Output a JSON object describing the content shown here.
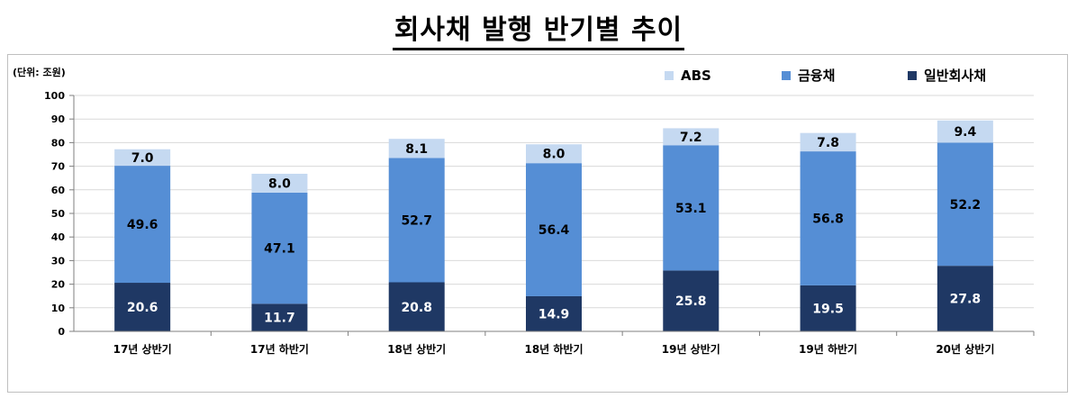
{
  "title": "회사채 발행 반기별 추이",
  "unit_label": "(단위: 조원)",
  "colors": {
    "abs": "#c5d9f1",
    "finance": "#558ed5",
    "general": "#1f3864",
    "grid": "#d9d9d9"
  },
  "chart_data": {
    "type": "bar",
    "stacked": true,
    "title": "",
    "xlabel": "",
    "ylabel": "",
    "ylim": [
      0,
      100
    ],
    "yticks": [
      "0",
      "10",
      "20",
      "30",
      "40",
      "50",
      "60",
      "70",
      "80",
      "90",
      "100"
    ],
    "categories": [
      "17년 상반기",
      "17년 하반기",
      "18년 상반기",
      "18년 하반기",
      "19년 상반기",
      "19년 하반기",
      "20년 상반기"
    ],
    "series": [
      {
        "name": "일반회사채",
        "values": [
          20.6,
          11.7,
          20.8,
          14.9,
          25.8,
          19.5,
          27.8
        ]
      },
      {
        "name": "금융채",
        "values": [
          49.6,
          47.1,
          52.7,
          56.4,
          53.1,
          56.8,
          52.2
        ]
      },
      {
        "name": "ABS",
        "values": [
          7.0,
          8.0,
          8.1,
          8.0,
          7.2,
          7.8,
          9.4
        ]
      }
    ],
    "legend_order": [
      "ABS",
      "금융채",
      "일반회사채"
    ],
    "legend_position": "top-right",
    "grid": true
  }
}
